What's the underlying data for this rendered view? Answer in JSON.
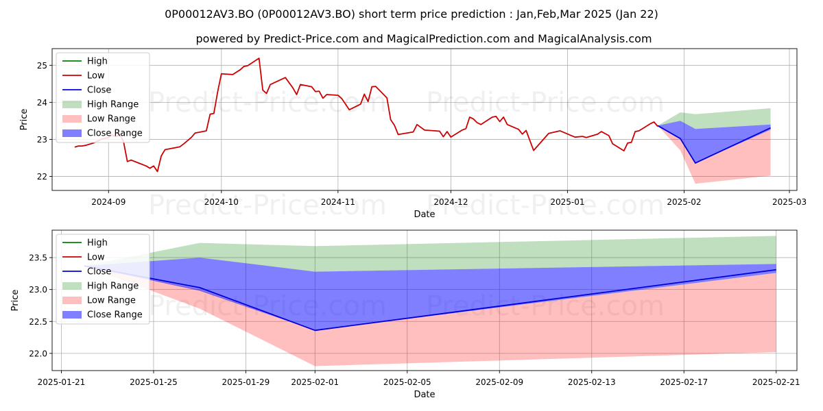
{
  "chart_data": [
    {
      "type": "line",
      "title": "0P00012AV3.BO (0P00012AV3.BO) short term price prediction : Jan,Feb,Mar 2025 (Jan 22)",
      "subtitle": "powered by Predict-Price.com and MagicalPrediction.com and MagicalAnalysis.com",
      "xlabel": "Date",
      "ylabel": "Price",
      "xlim": [
        "2024-08-17",
        "2025-03-03"
      ],
      "ylim": [
        21.62,
        25.45
      ],
      "xticks": [
        "2024-09",
        "2024-10",
        "2024-11",
        "2024-12",
        "2025-01",
        "2025-02",
        "2025-03"
      ],
      "yticks": [
        22,
        23,
        24,
        25
      ],
      "grid": true,
      "legend": "top-left",
      "watermark": "Predict-Price.com",
      "series": [
        {
          "name": "Low",
          "color": "#cc0000",
          "points": [
            [
              "2024-08-23",
              22.79
            ],
            [
              "2024-08-24",
              22.82
            ],
            [
              "2024-08-25",
              22.82
            ],
            [
              "2024-08-26",
              22.84
            ],
            [
              "2024-08-28",
              22.9
            ],
            [
              "2024-08-30",
              23.0
            ],
            [
              "2024-09-01",
              23.05
            ],
            [
              "2024-09-02",
              23.12
            ],
            [
              "2024-09-03",
              23.07
            ],
            [
              "2024-09-04",
              23.14
            ],
            [
              "2024-09-05",
              22.93
            ],
            [
              "2024-09-06",
              22.4
            ],
            [
              "2024-09-07",
              22.44
            ],
            [
              "2024-09-09",
              22.36
            ],
            [
              "2024-09-11",
              22.28
            ],
            [
              "2024-09-12",
              22.22
            ],
            [
              "2024-09-13",
              22.28
            ],
            [
              "2024-09-14",
              22.13
            ],
            [
              "2024-09-15",
              22.55
            ],
            [
              "2024-09-16",
              22.72
            ],
            [
              "2024-09-18",
              22.76
            ],
            [
              "2024-09-20",
              22.8
            ],
            [
              "2024-09-21",
              22.88
            ],
            [
              "2024-09-23",
              23.05
            ],
            [
              "2024-09-24",
              23.17
            ],
            [
              "2024-09-27",
              23.23
            ],
            [
              "2024-09-28",
              23.68
            ],
            [
              "2024-09-29",
              23.7
            ],
            [
              "2024-09-30",
              24.28
            ],
            [
              "2024-10-01",
              24.77
            ],
            [
              "2024-10-04",
              24.75
            ],
            [
              "2024-10-06",
              24.88
            ],
            [
              "2024-10-07",
              24.97
            ],
            [
              "2024-10-08",
              24.99
            ],
            [
              "2024-10-11",
              25.19
            ],
            [
              "2024-10-12",
              24.33
            ],
            [
              "2024-10-13",
              24.24
            ],
            [
              "2024-10-14",
              24.48
            ],
            [
              "2024-10-18",
              24.67
            ],
            [
              "2024-10-20",
              24.39
            ],
            [
              "2024-10-21",
              24.21
            ],
            [
              "2024-10-22",
              24.48
            ],
            [
              "2024-10-25",
              24.42
            ],
            [
              "2024-10-26",
              24.29
            ],
            [
              "2024-10-27",
              24.3
            ],
            [
              "2024-10-28",
              24.11
            ],
            [
              "2024-10-29",
              24.21
            ],
            [
              "2024-11-01",
              24.19
            ],
            [
              "2024-11-02",
              24.1
            ],
            [
              "2024-11-04",
              23.8
            ],
            [
              "2024-11-07",
              23.95
            ],
            [
              "2024-11-08",
              24.22
            ],
            [
              "2024-11-09",
              24.02
            ],
            [
              "2024-11-10",
              24.42
            ],
            [
              "2024-11-11",
              24.43
            ],
            [
              "2024-11-14",
              24.12
            ],
            [
              "2024-11-15",
              23.53
            ],
            [
              "2024-11-16",
              23.38
            ],
            [
              "2024-11-17",
              23.13
            ],
            [
              "2024-11-21",
              23.2
            ],
            [
              "2024-11-22",
              23.4
            ],
            [
              "2024-11-24",
              23.25
            ],
            [
              "2024-11-28",
              23.22
            ],
            [
              "2024-11-29",
              23.07
            ],
            [
              "2024-11-30",
              23.21
            ],
            [
              "2024-12-01",
              23.06
            ],
            [
              "2024-12-04",
              23.25
            ],
            [
              "2024-12-05",
              23.29
            ],
            [
              "2024-12-06",
              23.6
            ],
            [
              "2024-12-07",
              23.55
            ],
            [
              "2024-12-08",
              23.45
            ],
            [
              "2024-12-09",
              23.4
            ],
            [
              "2024-12-12",
              23.6
            ],
            [
              "2024-12-13",
              23.62
            ],
            [
              "2024-12-14",
              23.48
            ],
            [
              "2024-12-15",
              23.6
            ],
            [
              "2024-12-16",
              23.4
            ],
            [
              "2024-12-19",
              23.27
            ],
            [
              "2024-12-20",
              23.14
            ],
            [
              "2024-12-21",
              23.24
            ],
            [
              "2024-12-23",
              22.7
            ],
            [
              "2024-12-27",
              23.16
            ],
            [
              "2024-12-30",
              23.23
            ],
            [
              "2025-01-03",
              23.06
            ],
            [
              "2025-01-05",
              23.08
            ],
            [
              "2025-01-06",
              23.05
            ],
            [
              "2025-01-09",
              23.14
            ],
            [
              "2025-01-10",
              23.21
            ],
            [
              "2025-01-12",
              23.1
            ],
            [
              "2025-01-13",
              22.88
            ],
            [
              "2025-01-16",
              22.69
            ],
            [
              "2025-01-17",
              22.9
            ],
            [
              "2025-01-18",
              22.92
            ],
            [
              "2025-01-19",
              23.21
            ],
            [
              "2025-01-20",
              23.23
            ],
            [
              "2025-01-23",
              23.42
            ],
            [
              "2025-01-24",
              23.47
            ],
            [
              "2025-01-25",
              23.35
            ]
          ]
        },
        {
          "name": "Close",
          "color": "#0000dd",
          "points": [
            [
              "2025-01-25",
              23.37
            ],
            [
              "2025-01-31",
              23.02
            ],
            [
              "2025-02-04",
              22.36
            ],
            [
              "2025-02-24",
              23.31
            ]
          ]
        }
      ],
      "bands": [
        {
          "name": "High Range",
          "color": "#008000",
          "opacity": 0.25,
          "lower": [
            [
              "2025-01-25",
              23.37
            ],
            [
              "2025-01-31",
              23.5
            ],
            [
              "2025-02-04",
              23.28
            ],
            [
              "2025-02-24",
              23.4
            ]
          ],
          "upper": [
            [
              "2025-01-25",
              23.37
            ],
            [
              "2025-01-31",
              23.73
            ],
            [
              "2025-02-04",
              23.68
            ],
            [
              "2025-02-24",
              23.84
            ]
          ]
        },
        {
          "name": "Low Range",
          "color": "#ff0000",
          "opacity": 0.25,
          "lower": [
            [
              "2025-01-25",
              23.37
            ],
            [
              "2025-01-31",
              22.7
            ],
            [
              "2025-02-04",
              21.8
            ],
            [
              "2025-02-24",
              22.02
            ]
          ],
          "upper": [
            [
              "2025-01-25",
              23.37
            ],
            [
              "2025-01-31",
              23.02
            ],
            [
              "2025-02-04",
              22.36
            ],
            [
              "2025-02-24",
              23.26
            ]
          ]
        },
        {
          "name": "Close Range",
          "color": "#0000ff",
          "opacity": 0.5,
          "lower": [
            [
              "2025-01-25",
              23.37
            ],
            [
              "2025-01-31",
              23.0
            ],
            [
              "2025-02-04",
              22.36
            ],
            [
              "2025-02-24",
              23.26
            ]
          ],
          "upper": [
            [
              "2025-01-25",
              23.37
            ],
            [
              "2025-01-31",
              23.5
            ],
            [
              "2025-02-04",
              23.28
            ],
            [
              "2025-02-24",
              23.4
            ]
          ]
        }
      ]
    },
    {
      "type": "line",
      "xlabel": "Date",
      "ylabel": "Price",
      "xlim": [
        "2025-01-20.6",
        "2025-02-21.9"
      ],
      "ylim": [
        21.73,
        23.93
      ],
      "xticks": [
        "2025-01-21",
        "2025-01-25",
        "2025-01-29",
        "2025-02-01",
        "2025-02-05",
        "2025-02-09",
        "2025-02-13",
        "2025-02-17",
        "2025-02-21"
      ],
      "yticks": [
        22.0,
        22.5,
        23.0,
        23.5
      ],
      "grid": true,
      "legend": "top-left",
      "watermark": "Predict-Price.com",
      "series": [
        {
          "name": "Close",
          "color": "#0000dd",
          "points": [
            [
              "2025-01-22",
              23.37
            ],
            [
              "2025-01-27",
              23.03
            ],
            [
              "2025-02-01",
              22.36
            ],
            [
              "2025-02-21",
              23.31
            ]
          ]
        }
      ],
      "bands": [
        {
          "name": "High Range",
          "color": "#008000",
          "opacity": 0.25,
          "lower": [
            [
              "2025-01-22",
              23.37
            ],
            [
              "2025-01-27",
              23.5
            ],
            [
              "2025-02-01",
              23.28
            ],
            [
              "2025-02-21",
              23.4
            ]
          ],
          "upper": [
            [
              "2025-01-22",
              23.37
            ],
            [
              "2025-01-27",
              23.73
            ],
            [
              "2025-02-01",
              23.68
            ],
            [
              "2025-02-21",
              23.84
            ]
          ]
        },
        {
          "name": "Low Range",
          "color": "#ff0000",
          "opacity": 0.25,
          "lower": [
            [
              "2025-01-22",
              23.37
            ],
            [
              "2025-01-27",
              22.7
            ],
            [
              "2025-02-01",
              21.8
            ],
            [
              "2025-02-21",
              22.02
            ]
          ],
          "upper": [
            [
              "2025-01-22",
              23.37
            ],
            [
              "2025-01-27",
              23.0
            ],
            [
              "2025-02-01",
              22.36
            ],
            [
              "2025-02-21",
              23.26
            ]
          ]
        },
        {
          "name": "Close Range",
          "color": "#0000ff",
          "opacity": 0.5,
          "lower": [
            [
              "2025-01-22",
              23.37
            ],
            [
              "2025-01-27",
              22.98
            ],
            [
              "2025-02-01",
              22.36
            ],
            [
              "2025-02-21",
              23.26
            ]
          ],
          "upper": [
            [
              "2025-01-22",
              23.37
            ],
            [
              "2025-01-27",
              23.5
            ],
            [
              "2025-02-01",
              23.28
            ],
            [
              "2025-02-21",
              23.4
            ]
          ]
        }
      ]
    }
  ],
  "legend": {
    "items": [
      {
        "label": "High",
        "kind": "line",
        "color": "#008000"
      },
      {
        "label": "Low",
        "kind": "line",
        "color": "#cc0000"
      },
      {
        "label": "Close",
        "kind": "line",
        "color": "#0000dd"
      },
      {
        "label": "High Range",
        "kind": "patch",
        "color": "#008000",
        "opacity": 0.25
      },
      {
        "label": "Low Range",
        "kind": "patch",
        "color": "#ff0000",
        "opacity": 0.25
      },
      {
        "label": "Close Range",
        "kind": "patch",
        "color": "#0000ff",
        "opacity": 0.5
      }
    ]
  }
}
